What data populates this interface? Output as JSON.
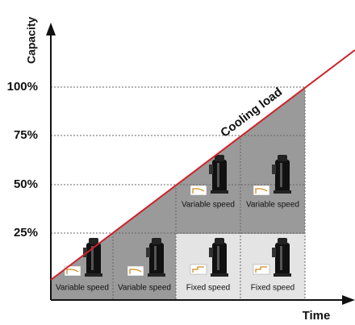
{
  "axes": {
    "y_label": "Capacity",
    "x_label": "Time",
    "y_ticks": [
      "100%",
      "75%",
      "50%",
      "25%"
    ]
  },
  "line_label": "Cooling load",
  "cells": [
    {
      "label": "Variable speed"
    },
    {
      "label": "Variable speed"
    },
    {
      "label": "Fixed speed"
    },
    {
      "label": "Fixed speed"
    },
    {
      "label": "Variable speed"
    },
    {
      "label": "Variable speed"
    }
  ]
}
